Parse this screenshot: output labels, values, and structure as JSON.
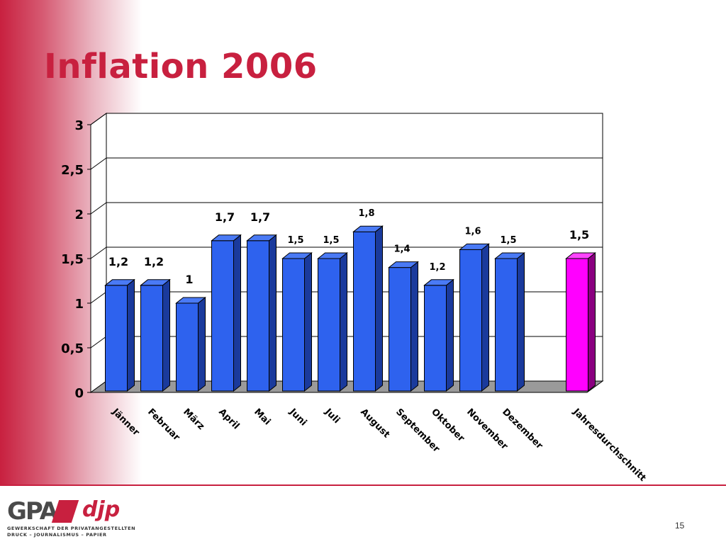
{
  "slide": {
    "title": "Inflation 2006",
    "page_number": "15"
  },
  "logo": {
    "brand_main": "GPA",
    "brand_second": "djp",
    "subtitle_line1": "GEWERKSCHAFT DER PRIVATANGESTELLTEN",
    "subtitle_line2": "DRUCK – JOURNALISMUS – PAPIER"
  },
  "colors": {
    "accent": "#c8203f",
    "bar_blue": "#2e62ee",
    "bar_highlight": "#ff00ff"
  },
  "chart_data": {
    "type": "bar",
    "style": "3d-column",
    "categories": [
      "Jänner",
      "Februar",
      "März",
      "April",
      "Mai",
      "Juni",
      "Juli",
      "August",
      "September",
      "Oktober",
      "November",
      "Dezember",
      "Jahresdurchschnitt"
    ],
    "values": [
      1.2,
      1.2,
      1,
      1.7,
      1.7,
      1.5,
      1.5,
      1.8,
      1.4,
      1.2,
      1.6,
      1.5,
      1.5
    ],
    "data_labels": [
      "1,2",
      "1,2",
      "1",
      "1,7",
      "1,7",
      "1,5",
      "1,5",
      "1,8",
      "1,4",
      "1,2",
      "1,6",
      "1,5",
      "1,5"
    ],
    "highlight_category": "Jahresdurchschnitt",
    "y_ticks": [
      "0",
      "0,5",
      "1",
      "1,5",
      "2",
      "2,5",
      "3"
    ],
    "ylim": [
      0,
      3
    ],
    "y_step": 0.5,
    "grid": true,
    "legend": false
  }
}
